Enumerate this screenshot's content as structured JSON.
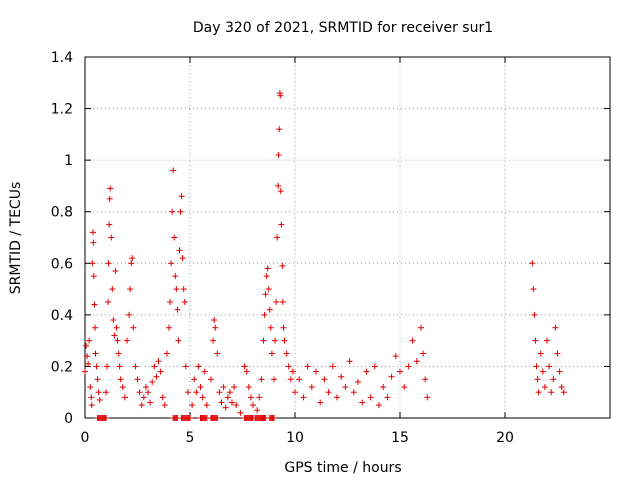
{
  "chart_data": {
    "type": "scatter",
    "title": "Day 320 of 2021, SRMTID for receiver sur1",
    "xlabel": "GPS time / hours",
    "ylabel": "SRMTID / TECUs",
    "xlim": [
      0,
      25
    ],
    "ylim": [
      0,
      1.4
    ],
    "x_ticks": [
      0,
      5,
      10,
      15,
      20
    ],
    "x_tick_labels": [
      "0",
      "5",
      "10",
      "15",
      "20"
    ],
    "y_ticks": [
      0,
      0.2,
      0.4,
      0.6,
      0.8,
      1.0,
      1.2,
      1.4
    ],
    "y_tick_labels": [
      "0",
      "0.2",
      "0.4",
      "0.6",
      "0.8",
      "1",
      "1.2",
      "1.4"
    ],
    "grid": true,
    "marker": "+",
    "series": [
      {
        "name": "SRMTID",
        "color": "#e00000",
        "points": [
          [
            0.0,
            0.18
          ],
          [
            0.05,
            0.28
          ],
          [
            0.1,
            0.24
          ],
          [
            0.15,
            0.21
          ],
          [
            0.2,
            0.3
          ],
          [
            0.25,
            0.12
          ],
          [
            0.3,
            0.08
          ],
          [
            0.32,
            0.05
          ],
          [
            0.35,
            0.6
          ],
          [
            0.38,
            0.72
          ],
          [
            0.4,
            0.68
          ],
          [
            0.42,
            0.55
          ],
          [
            0.45,
            0.44
          ],
          [
            0.48,
            0.35
          ],
          [
            0.5,
            0.25
          ],
          [
            0.55,
            0.2
          ],
          [
            0.6,
            0.15
          ],
          [
            0.65,
            0.1
          ],
          [
            0.7,
            0.07
          ],
          [
            1.0,
            0.1
          ],
          [
            1.05,
            0.2
          ],
          [
            1.1,
            0.45
          ],
          [
            1.12,
            0.6
          ],
          [
            1.15,
            0.75
          ],
          [
            1.18,
            0.85
          ],
          [
            1.2,
            0.89
          ],
          [
            1.25,
            0.7
          ],
          [
            1.3,
            0.5
          ],
          [
            1.35,
            0.38
          ],
          [
            1.4,
            0.32
          ],
          [
            1.45,
            0.57
          ],
          [
            1.5,
            0.35
          ],
          [
            1.55,
            0.3
          ],
          [
            1.6,
            0.25
          ],
          [
            1.65,
            0.2
          ],
          [
            1.7,
            0.15
          ],
          [
            1.8,
            0.12
          ],
          [
            1.9,
            0.08
          ],
          [
            2.0,
            0.3
          ],
          [
            2.1,
            0.4
          ],
          [
            2.15,
            0.5
          ],
          [
            2.2,
            0.6
          ],
          [
            2.25,
            0.62
          ],
          [
            2.3,
            0.35
          ],
          [
            2.4,
            0.2
          ],
          [
            2.5,
            0.15
          ],
          [
            2.6,
            0.1
          ],
          [
            2.7,
            0.05
          ],
          [
            2.8,
            0.08
          ],
          [
            2.9,
            0.12
          ],
          [
            3.0,
            0.1
          ],
          [
            3.1,
            0.06
          ],
          [
            3.2,
            0.14
          ],
          [
            3.3,
            0.2
          ],
          [
            3.4,
            0.16
          ],
          [
            3.5,
            0.22
          ],
          [
            3.6,
            0.18
          ],
          [
            3.7,
            0.08
          ],
          [
            3.8,
            0.05
          ],
          [
            3.9,
            0.25
          ],
          [
            4.0,
            0.35
          ],
          [
            4.05,
            0.45
          ],
          [
            4.1,
            0.6
          ],
          [
            4.15,
            0.8
          ],
          [
            4.2,
            0.96
          ],
          [
            4.25,
            0.7
          ],
          [
            4.3,
            0.55
          ],
          [
            4.35,
            0.5
          ],
          [
            4.4,
            0.42
          ],
          [
            4.45,
            0.3
          ],
          [
            4.5,
            0.65
          ],
          [
            4.55,
            0.8
          ],
          [
            4.6,
            0.86
          ],
          [
            4.65,
            0.62
          ],
          [
            4.7,
            0.5
          ],
          [
            4.75,
            0.45
          ],
          [
            4.8,
            0.2
          ],
          [
            4.9,
            0.1
          ],
          [
            5.1,
            0.05
          ],
          [
            5.2,
            0.15
          ],
          [
            5.3,
            0.1
          ],
          [
            5.4,
            0.2
          ],
          [
            5.5,
            0.12
          ],
          [
            5.6,
            0.08
          ],
          [
            5.7,
            0.18
          ],
          [
            5.8,
            0.05
          ],
          [
            6.0,
            0.15
          ],
          [
            6.1,
            0.3
          ],
          [
            6.15,
            0.38
          ],
          [
            6.2,
            0.35
          ],
          [
            6.3,
            0.25
          ],
          [
            6.4,
            0.1
          ],
          [
            6.5,
            0.06
          ],
          [
            6.6,
            0.12
          ],
          [
            6.7,
            0.04
          ],
          [
            6.8,
            0.08
          ],
          [
            6.9,
            0.1
          ],
          [
            7.0,
            0.06
          ],
          [
            7.1,
            0.12
          ],
          [
            7.2,
            0.05
          ],
          [
            7.4,
            0.02
          ],
          [
            7.6,
            0.2
          ],
          [
            7.7,
            0.18
          ],
          [
            7.8,
            0.12
          ],
          [
            7.9,
            0.08
          ],
          [
            8.0,
            0.05
          ],
          [
            8.2,
            0.03
          ],
          [
            8.3,
            0.08
          ],
          [
            8.4,
            0.15
          ],
          [
            8.5,
            0.3
          ],
          [
            8.55,
            0.4
          ],
          [
            8.6,
            0.48
          ],
          [
            8.65,
            0.55
          ],
          [
            8.7,
            0.58
          ],
          [
            8.75,
            0.5
          ],
          [
            8.8,
            0.42
          ],
          [
            8.85,
            0.35
          ],
          [
            8.9,
            0.25
          ],
          [
            9.0,
            0.15
          ],
          [
            9.05,
            0.3
          ],
          [
            9.1,
            0.45
          ],
          [
            9.15,
            0.7
          ],
          [
            9.2,
            0.9
          ],
          [
            9.22,
            1.02
          ],
          [
            9.25,
            1.12
          ],
          [
            9.28,
            1.26
          ],
          [
            9.3,
            1.25
          ],
          [
            9.32,
            0.88
          ],
          [
            9.35,
            0.75
          ],
          [
            9.4,
            0.59
          ],
          [
            9.42,
            0.45
          ],
          [
            9.45,
            0.35
          ],
          [
            9.5,
            0.3
          ],
          [
            9.6,
            0.25
          ],
          [
            9.7,
            0.2
          ],
          [
            9.8,
            0.15
          ],
          [
            9.9,
            0.18
          ],
          [
            10.0,
            0.1
          ],
          [
            10.2,
            0.15
          ],
          [
            10.4,
            0.08
          ],
          [
            10.6,
            0.2
          ],
          [
            10.8,
            0.12
          ],
          [
            11.0,
            0.18
          ],
          [
            11.2,
            0.06
          ],
          [
            11.4,
            0.15
          ],
          [
            11.6,
            0.1
          ],
          [
            11.8,
            0.2
          ],
          [
            12.0,
            0.08
          ],
          [
            12.2,
            0.16
          ],
          [
            12.4,
            0.12
          ],
          [
            12.6,
            0.22
          ],
          [
            12.8,
            0.1
          ],
          [
            13.0,
            0.14
          ],
          [
            13.2,
            0.06
          ],
          [
            13.4,
            0.18
          ],
          [
            13.6,
            0.08
          ],
          [
            13.8,
            0.2
          ],
          [
            14.0,
            0.05
          ],
          [
            14.2,
            0.12
          ],
          [
            14.4,
            0.08
          ],
          [
            14.6,
            0.16
          ],
          [
            14.8,
            0.24
          ],
          [
            15.0,
            0.18
          ],
          [
            15.2,
            0.12
          ],
          [
            15.4,
            0.2
          ],
          [
            15.6,
            0.3
          ],
          [
            15.8,
            0.22
          ],
          [
            16.0,
            0.35
          ],
          [
            16.1,
            0.25
          ],
          [
            16.2,
            0.15
          ],
          [
            16.3,
            0.08
          ],
          [
            21.3,
            0.6
          ],
          [
            21.35,
            0.5
          ],
          [
            21.4,
            0.4
          ],
          [
            21.45,
            0.3
          ],
          [
            21.5,
            0.2
          ],
          [
            21.55,
            0.15
          ],
          [
            21.6,
            0.1
          ],
          [
            21.7,
            0.25
          ],
          [
            21.8,
            0.18
          ],
          [
            21.9,
            0.12
          ],
          [
            22.0,
            0.3
          ],
          [
            22.1,
            0.2
          ],
          [
            22.2,
            0.1
          ],
          [
            22.3,
            0.15
          ],
          [
            22.4,
            0.35
          ],
          [
            22.5,
            0.25
          ],
          [
            22.6,
            0.18
          ],
          [
            22.7,
            0.12
          ],
          [
            22.8,
            0.1
          ]
        ]
      }
    ],
    "zero_segments": [
      [
        0.6,
        1.0
      ],
      [
        4.2,
        4.4
      ],
      [
        4.6,
        5.0
      ],
      [
        5.5,
        5.8
      ],
      [
        6.0,
        6.3
      ],
      [
        7.6,
        8.0
      ],
      [
        8.1,
        8.6
      ],
      [
        8.8,
        9.0
      ]
    ]
  }
}
